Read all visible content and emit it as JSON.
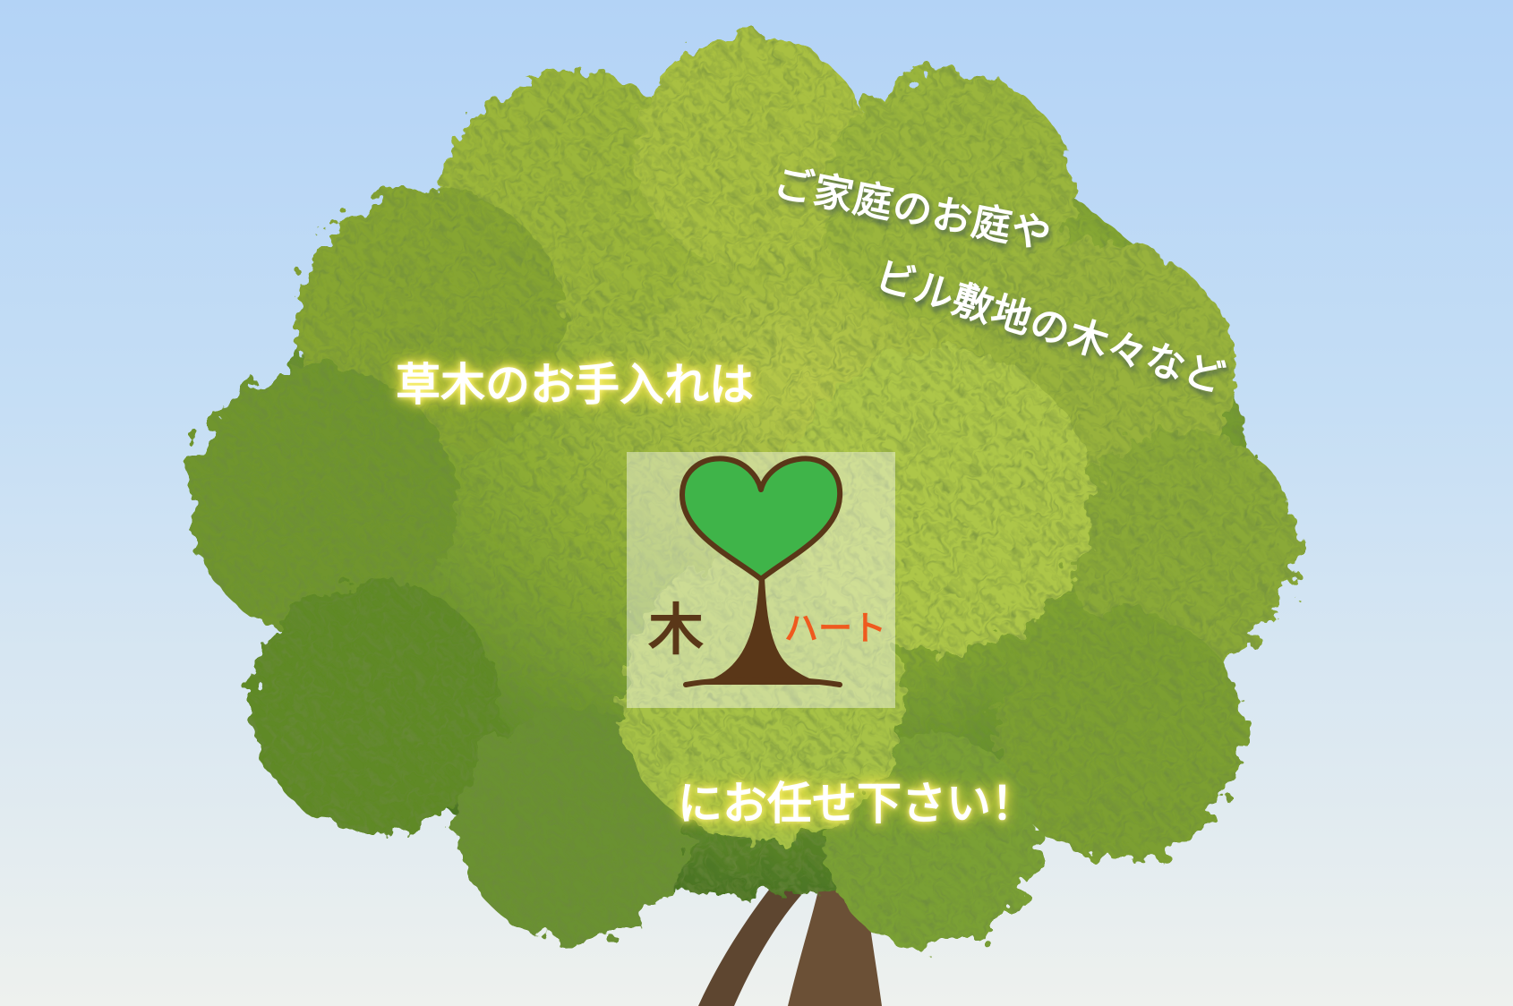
{
  "tagline": {
    "line1": "ご家庭のお庭や",
    "line2": "ビル敷地の木々など",
    "line3": "草木のお手入れは",
    "line4": "にお任せ下さい！"
  },
  "logo": {
    "char_ki": "木",
    "text_heart": "ハート",
    "heart_color": "#3fb449",
    "trunk_color": "#5a3718",
    "accent_color": "#ef5a1e"
  },
  "background": {
    "sky_top": "#b3d3f6",
    "sky_bottom": "#eef1ee",
    "foliage_color": "#6f9a2c"
  }
}
